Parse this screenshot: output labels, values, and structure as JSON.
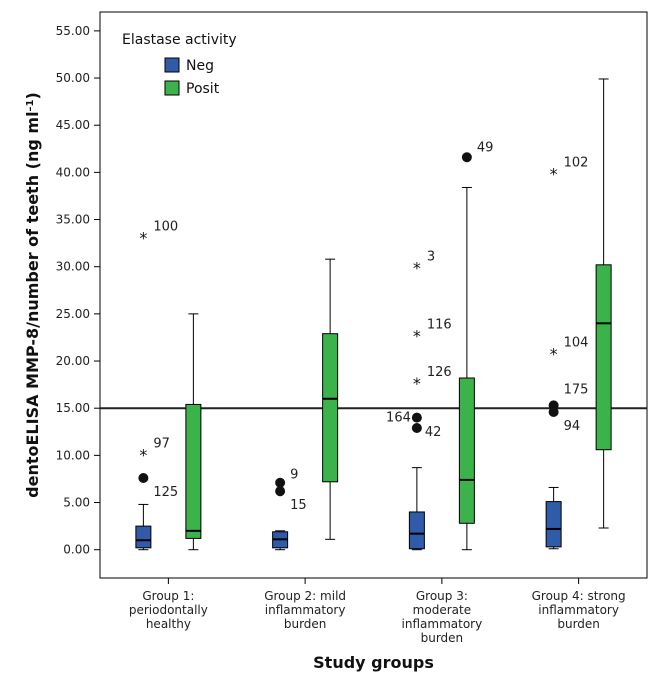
{
  "chart_data": {
    "type": "boxplot",
    "xlabel": "Study groups",
    "ylabel": "dentoELISA MMP-8/number of teeth (ng ml",
    "ylabel_sup": "–1",
    "ylabel_close": ")",
    "ylim": [
      -3,
      57
    ],
    "yticks": [
      0,
      5,
      10,
      15,
      20,
      25,
      30,
      35,
      40,
      45,
      50,
      55
    ],
    "ytick_labels": [
      "0.00",
      "5.00",
      "10.00",
      "15.00",
      "20.00",
      "25.00",
      "30.00",
      "35.00",
      "40.00",
      "45.00",
      "50.00",
      "55.00"
    ],
    "reference_line": 15,
    "legend": {
      "title": "Elastase activity",
      "placement": "top-left",
      "entries": [
        {
          "label": "Neg",
          "color": "#2f5ba8"
        },
        {
          "label": "Posit",
          "color": "#3cb34a"
        }
      ]
    },
    "groups": [
      {
        "label_lines": [
          "Group 1:",
          "periodontally",
          "healthy"
        ]
      },
      {
        "label_lines": [
          "Group 2: mild",
          "inflammatory",
          "burden"
        ]
      },
      {
        "label_lines": [
          "Group 3:",
          "moderate",
          "inflammatory",
          "burden"
        ]
      },
      {
        "label_lines": [
          "Group 4: strong",
          "inflammatory",
          "burden"
        ]
      }
    ],
    "series": [
      {
        "name": "Neg",
        "color": "#2f5ba8",
        "boxes": [
          {
            "min": 0,
            "q1": 0.2,
            "median": 1.0,
            "q3": 2.5,
            "max": 4.8
          },
          {
            "min": 0,
            "q1": 0.2,
            "median": 1.1,
            "q3": 1.9,
            "max": 2.0
          },
          {
            "min": 0,
            "q1": 0.1,
            "median": 1.7,
            "q3": 4.0,
            "max": 8.7
          },
          {
            "min": 0.1,
            "q1": 0.3,
            "median": 2.2,
            "q3": 5.1,
            "max": 6.6
          }
        ],
        "outliers": [
          [
            {
              "value": 7.6,
              "kind": "circle",
              "label": "125"
            },
            {
              "value": 10.2,
              "kind": "star",
              "label": "97"
            },
            {
              "value": 33.2,
              "kind": "star",
              "label": "100"
            }
          ],
          [
            {
              "value": 7.1,
              "kind": "circle",
              "label": "9"
            },
            {
              "value": 6.2,
              "kind": "circle",
              "label": "15"
            }
          ],
          [
            {
              "value": 14.0,
              "kind": "circle",
              "label": "164"
            },
            {
              "value": 12.9,
              "kind": "circle",
              "label": "42"
            },
            {
              "value": 17.8,
              "kind": "star",
              "label": "126"
            },
            {
              "value": 22.8,
              "kind": "star",
              "label": "116"
            },
            {
              "value": 30.0,
              "kind": "star",
              "label": "3"
            }
          ],
          [
            {
              "value": 15.3,
              "kind": "circle",
              "label": "175"
            },
            {
              "value": 14.6,
              "kind": "circle",
              "label": "94"
            },
            {
              "value": 20.9,
              "kind": "star",
              "label": "104"
            },
            {
              "value": 40.0,
              "kind": "star",
              "label": "102"
            }
          ]
        ]
      },
      {
        "name": "Posit",
        "color": "#3cb34a",
        "boxes": [
          {
            "min": 0,
            "q1": 1.2,
            "median": 2.0,
            "q3": 15.4,
            "max": 25.0
          },
          {
            "min": 1.1,
            "q1": 7.2,
            "median": 16.0,
            "q3": 22.9,
            "max": 30.8
          },
          {
            "min": 0,
            "q1": 2.8,
            "median": 7.4,
            "q3": 18.2,
            "max": 38.4
          },
          {
            "min": 2.3,
            "q1": 10.6,
            "median": 24.0,
            "q3": 30.2,
            "max": 49.9
          }
        ],
        "outliers": [
          [],
          [],
          [
            {
              "value": 41.6,
              "kind": "circle",
              "label": "49"
            }
          ],
          []
        ]
      }
    ]
  }
}
